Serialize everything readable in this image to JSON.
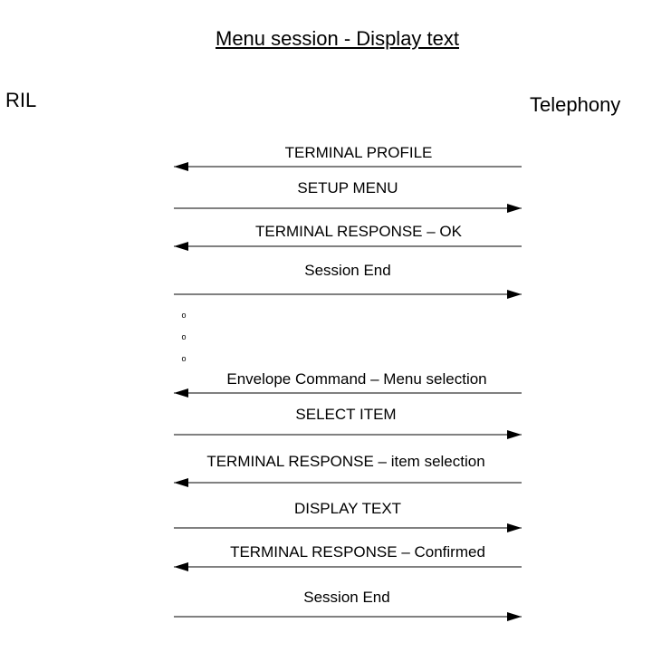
{
  "title": "Menu session - Display text",
  "actors": {
    "left": "RIL",
    "right": "Telephony"
  },
  "messages": [
    {
      "label": "TERMINAL PROFILE",
      "direction": "left"
    },
    {
      "label": "SETUP MENU",
      "direction": "right"
    },
    {
      "label": "TERMINAL RESPONSE – OK",
      "direction": "left"
    },
    {
      "label": "Session End",
      "direction": "right"
    },
    {
      "label": "Envelope Command – Menu selection",
      "direction": "left"
    },
    {
      "label": "SELECT ITEM",
      "direction": "right"
    },
    {
      "label": "TERMINAL RESPONSE – item selection",
      "direction": "left"
    },
    {
      "label": "DISPLAY TEXT",
      "direction": "right"
    },
    {
      "label": "TERMINAL RESPONSE – Confirmed",
      "direction": "left"
    },
    {
      "label": "Session End",
      "direction": "right"
    }
  ],
  "ellipsis_marker": "o"
}
